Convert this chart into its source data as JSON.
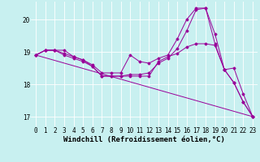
{
  "background_color": "#c8f0f0",
  "line_color": "#990099",
  "grid_color": "#ffffff",
  "xlim": [
    -0.5,
    23.5
  ],
  "ylim": [
    16.7,
    20.55
  ],
  "yticks": [
    17,
    18,
    19,
    20
  ],
  "xticks": [
    0,
    1,
    2,
    3,
    4,
    5,
    6,
    7,
    8,
    9,
    10,
    11,
    12,
    13,
    14,
    15,
    16,
    17,
    18,
    19,
    20,
    21,
    22,
    23
  ],
  "line1_x": [
    0,
    1,
    2,
    3,
    4,
    5,
    6,
    7,
    8,
    9,
    10,
    11,
    12,
    13,
    14,
    15,
    16,
    17,
    18,
    19,
    20,
    21,
    22,
    23
  ],
  "line1_y": [
    18.9,
    19.05,
    19.05,
    18.95,
    18.85,
    18.75,
    18.55,
    18.25,
    18.25,
    18.25,
    18.25,
    18.25,
    18.25,
    18.7,
    18.85,
    18.95,
    19.15,
    19.25,
    19.25,
    19.2,
    18.45,
    18.05,
    17.45,
    17.0
  ],
  "line2_x": [
    0,
    1,
    2,
    3,
    4,
    5,
    6,
    7,
    8,
    9,
    10,
    11,
    12,
    13,
    14,
    15,
    16,
    17,
    18,
    19,
    20,
    21,
    22,
    23
  ],
  "line2_y": [
    18.9,
    19.05,
    19.05,
    19.05,
    18.85,
    18.75,
    18.6,
    18.35,
    18.35,
    18.35,
    18.9,
    18.7,
    18.65,
    18.8,
    18.9,
    19.4,
    20.0,
    20.35,
    20.35,
    19.25,
    18.45,
    18.5,
    17.7,
    17.0
  ],
  "line3_x": [
    0,
    1,
    2,
    3,
    4,
    5,
    6,
    7,
    8,
    9,
    10,
    11,
    12,
    13,
    14,
    15,
    16,
    17,
    18,
    19,
    20,
    21,
    22,
    23
  ],
  "line3_y": [
    18.9,
    19.05,
    19.05,
    18.9,
    18.8,
    18.7,
    18.55,
    18.25,
    18.25,
    18.25,
    18.3,
    18.3,
    18.35,
    18.65,
    18.8,
    19.1,
    19.65,
    20.3,
    20.35,
    19.55,
    18.45,
    18.05,
    17.45,
    17.0
  ],
  "line4_x": [
    0,
    23
  ],
  "line4_y": [
    18.9,
    17.0
  ],
  "xlabel": "Windchill (Refroidissement éolien,°C)",
  "figsize": [
    3.2,
    2.0
  ],
  "dpi": 100,
  "tick_fontsize": 5.5,
  "label_fontsize": 6.5
}
